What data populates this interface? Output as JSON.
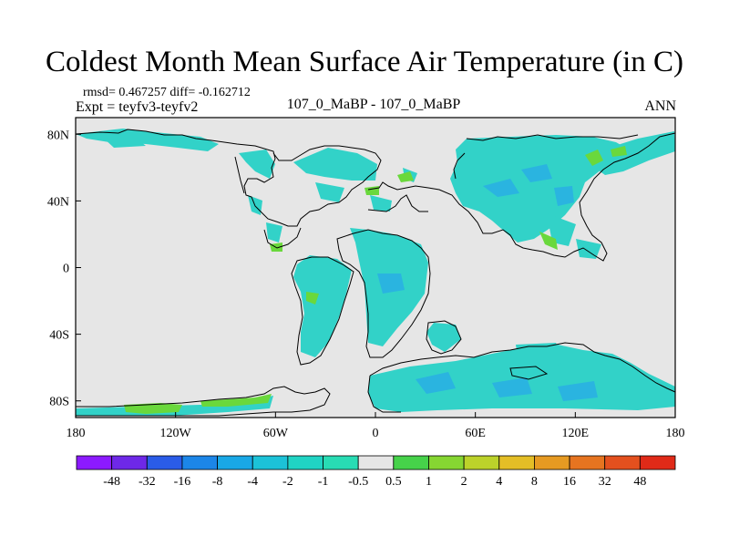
{
  "title": "Coldest Month Mean Surface Air Temperature (in C)",
  "stats": "rmsd= 0.467257 diff= -0.162712",
  "experiment": "Expt = teyfv3-teyfv2",
  "center_label": "107_0_MaBP - 107_0_MaBP",
  "season": "ANN",
  "y_ticks": [
    {
      "label": "80N",
      "lat": 80
    },
    {
      "label": "40N",
      "lat": 40
    },
    {
      "label": "0",
      "lat": 0
    },
    {
      "label": "40S",
      "lat": -40
    },
    {
      "label": "80S",
      "lat": -80
    }
  ],
  "x_ticks": [
    {
      "label": "180",
      "lon": -180
    },
    {
      "label": "120W",
      "lon": -120
    },
    {
      "label": "60W",
      "lon": -60
    },
    {
      "label": "0",
      "lon": 0
    },
    {
      "label": "60E",
      "lon": 60
    },
    {
      "label": "120E",
      "lon": 120
    },
    {
      "label": "180",
      "lon": 180
    }
  ],
  "colorbar": {
    "labels": [
      "-48",
      "-32",
      "-16",
      "-8",
      "-4",
      "-2",
      "-1",
      "-0.5",
      "0.5",
      "1",
      "2",
      "4",
      "8",
      "16",
      "32",
      "48"
    ],
    "colors": [
      "#8c1aff",
      "#6e28e8",
      "#2a5ce8",
      "#1c86e8",
      "#19a8e6",
      "#1cc2d8",
      "#20d4c4",
      "#28dcb4",
      "#e6e6e6",
      "#46d24a",
      "#86d632",
      "#bcd22a",
      "#e4be26",
      "#e69a22",
      "#e67420",
      "#e4501e",
      "#e02a18"
    ]
  },
  "colors": {
    "background": "#e6e6e6",
    "negative_small": "#32d2c8",
    "negative_medium": "#2ab4e0",
    "positive_small": "#6ad83c",
    "coastline": "#000000"
  }
}
